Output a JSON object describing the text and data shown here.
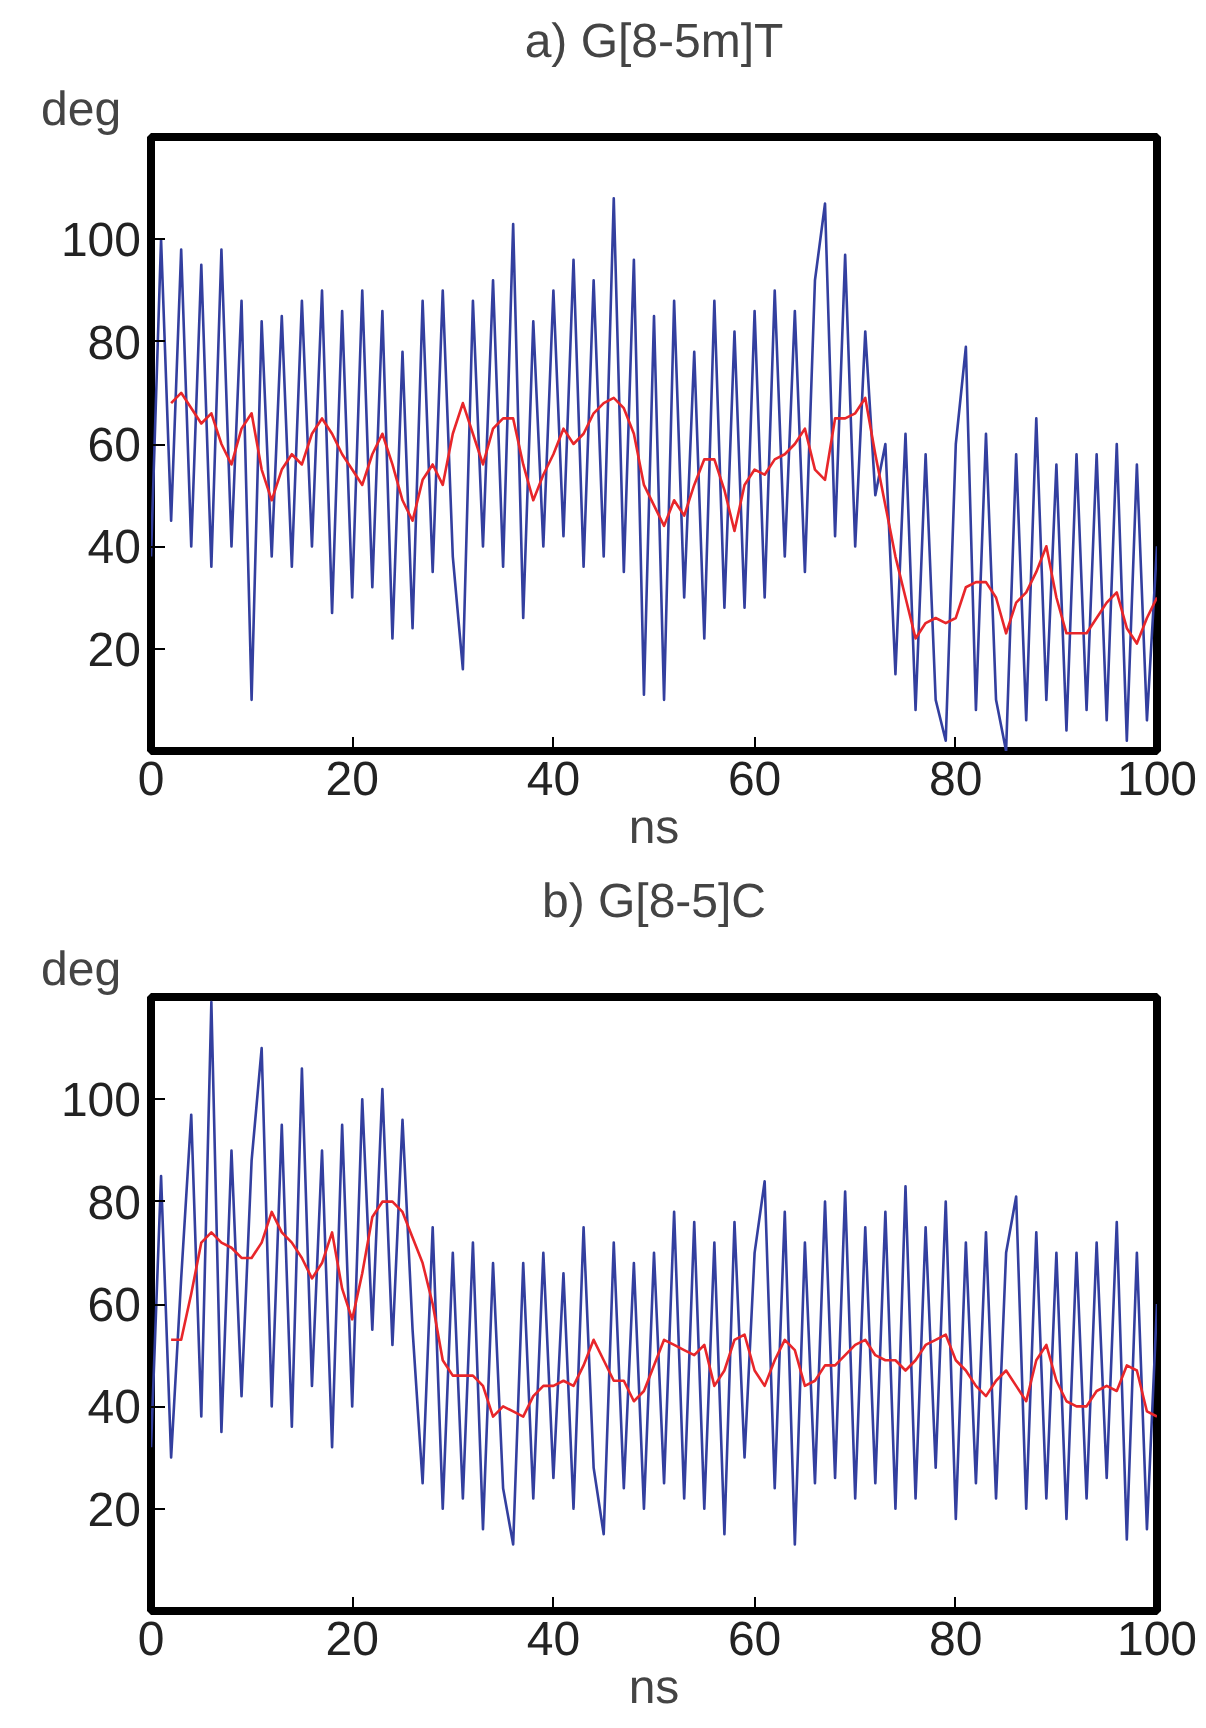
{
  "chart_data": [
    {
      "type": "line",
      "title": "a) G[8-5m]T",
      "xlabel": "ns",
      "ylabel": "deg",
      "xlim": [
        0,
        100
      ],
      "ylim": [
        0,
        120
      ],
      "xticks": [
        0,
        20,
        40,
        60,
        80,
        100
      ],
      "yticks": [
        20,
        40,
        60,
        80,
        100
      ],
      "series": [
        {
          "color": "#333f9f",
          "x": [
            0,
            1,
            2,
            3,
            4,
            5,
            6,
            7,
            8,
            9,
            10,
            11,
            12,
            13,
            14,
            15,
            16,
            17,
            18,
            19,
            20,
            21,
            22,
            23,
            24,
            25,
            26,
            27,
            28,
            29,
            30,
            31,
            32,
            33,
            34,
            35,
            36,
            37,
            38,
            39,
            40,
            41,
            42,
            43,
            44,
            45,
            46,
            47,
            48,
            49,
            50,
            51,
            52,
            53,
            54,
            55,
            56,
            57,
            58,
            59,
            60,
            61,
            62,
            63,
            64,
            65,
            66,
            67,
            68,
            69,
            70,
            71,
            72,
            73,
            74,
            75,
            76,
            77,
            78,
            79,
            80,
            81,
            82,
            83,
            84,
            85,
            86,
            87,
            88,
            89,
            90,
            91,
            92,
            93,
            94,
            95,
            96,
            97,
            98,
            99,
            100
          ],
          "values": [
            38,
            100,
            45,
            98,
            40,
            95,
            36,
            98,
            40,
            88,
            10,
            84,
            38,
            85,
            36,
            88,
            40,
            90,
            27,
            86,
            30,
            90,
            32,
            86,
            22,
            78,
            24,
            88,
            35,
            90,
            38,
            16,
            88,
            40,
            92,
            36,
            103,
            26,
            84,
            40,
            90,
            42,
            96,
            36,
            92,
            38,
            108,
            35,
            96,
            11,
            85,
            10,
            88,
            30,
            78,
            22,
            88,
            28,
            82,
            28,
            86,
            30,
            90,
            38,
            86,
            35,
            92,
            107,
            42,
            97,
            40,
            82,
            50,
            60,
            15,
            62,
            8,
            58,
            10,
            2,
            60,
            79,
            8,
            62,
            10,
            0,
            58,
            6,
            65,
            10,
            56,
            4,
            58,
            8,
            58,
            6,
            60,
            2,
            56,
            6,
            40
          ]
        },
        {
          "color": "#e8262a",
          "x": [
            2,
            3,
            5,
            6,
            7,
            8,
            9,
            10,
            11,
            12,
            13,
            14,
            15,
            16,
            17,
            18,
            19,
            20,
            21,
            22,
            23,
            24,
            25,
            26,
            27,
            28,
            29,
            30,
            31,
            32,
            33,
            34,
            35,
            36,
            37,
            38,
            39,
            40,
            41,
            42,
            43,
            44,
            45,
            46,
            47,
            48,
            49,
            50,
            51,
            52,
            53,
            54,
            55,
            56,
            57,
            58,
            59,
            60,
            61,
            62,
            63,
            64,
            65,
            66,
            67,
            68,
            69,
            70,
            71,
            72,
            73,
            74,
            75,
            76,
            77,
            78,
            79,
            80,
            81,
            82,
            83,
            84,
            85,
            86,
            87,
            88,
            89,
            90,
            91,
            92,
            93,
            94,
            95,
            96,
            97,
            98,
            99,
            100
          ],
          "values": [
            68,
            70,
            64,
            66,
            60,
            56,
            63,
            66,
            55,
            49,
            55,
            58,
            56,
            62,
            65,
            62,
            58,
            55,
            52,
            58,
            62,
            56,
            49,
            45,
            53,
            56,
            52,
            62,
            68,
            62,
            56,
            63,
            65,
            65,
            56,
            49,
            54,
            58,
            63,
            60,
            62,
            66,
            68,
            69,
            67,
            62,
            52,
            48,
            44,
            49,
            46,
            52,
            57,
            57,
            51,
            43,
            52,
            55,
            54,
            57,
            58,
            60,
            63,
            55,
            53,
            65,
            65,
            66,
            69,
            58,
            48,
            38,
            30,
            22,
            25,
            26,
            25,
            26,
            32,
            33,
            33,
            30,
            23,
            29,
            31,
            35,
            40,
            30,
            23,
            23,
            23,
            26,
            29,
            31,
            24,
            21,
            26,
            30
          ]
        }
      ]
    },
    {
      "type": "line",
      "title": "b) G[8-5]C",
      "xlabel": "ns",
      "ylabel": "deg",
      "xlim": [
        0,
        100
      ],
      "ylim": [
        0,
        120
      ],
      "xticks": [
        0,
        20,
        40,
        60,
        80,
        100
      ],
      "yticks": [
        20,
        40,
        60,
        80,
        100
      ],
      "series": [
        {
          "color": "#333f9f",
          "x": [
            0,
            1,
            2,
            3,
            4,
            5,
            6,
            7,
            8,
            9,
            10,
            11,
            12,
            13,
            14,
            15,
            16,
            17,
            18,
            19,
            20,
            21,
            22,
            23,
            24,
            25,
            26,
            27,
            28,
            29,
            30,
            31,
            32,
            33,
            34,
            35,
            36,
            37,
            38,
            39,
            40,
            41,
            42,
            43,
            44,
            45,
            46,
            47,
            48,
            49,
            50,
            51,
            52,
            53,
            54,
            55,
            56,
            57,
            58,
            59,
            60,
            61,
            62,
            63,
            64,
            65,
            66,
            67,
            68,
            69,
            70,
            71,
            72,
            73,
            74,
            75,
            76,
            77,
            78,
            79,
            80,
            81,
            82,
            83,
            84,
            85,
            86,
            87,
            88,
            89,
            90,
            91,
            92,
            93,
            94,
            95,
            96,
            97,
            98,
            99,
            100
          ],
          "values": [
            32,
            85,
            30,
            65,
            97,
            38,
            119,
            35,
            90,
            42,
            88,
            110,
            40,
            95,
            36,
            106,
            44,
            90,
            32,
            95,
            40,
            100,
            55,
            102,
            52,
            96,
            55,
            25,
            75,
            20,
            70,
            22,
            72,
            16,
            68,
            24,
            13,
            68,
            22,
            70,
            26,
            66,
            20,
            75,
            28,
            15,
            72,
            24,
            68,
            20,
            70,
            25,
            78,
            22,
            76,
            20,
            72,
            15,
            76,
            30,
            70,
            84,
            24,
            78,
            13,
            72,
            25,
            80,
            26,
            82,
            22,
            75,
            25,
            78,
            20,
            83,
            22,
            75,
            28,
            80,
            18,
            72,
            25,
            74,
            22,
            70,
            81,
            20,
            74,
            22,
            70,
            18,
            70,
            22,
            72,
            26,
            76,
            14,
            70,
            16,
            60
          ]
        },
        {
          "color": "#e8262a",
          "x": [
            2,
            3,
            4,
            5,
            6,
            7,
            8,
            9,
            10,
            11,
            12,
            13,
            14,
            15,
            16,
            17,
            18,
            19,
            20,
            21,
            22,
            23,
            24,
            25,
            26,
            27,
            28,
            29,
            30,
            31,
            32,
            33,
            34,
            35,
            36,
            37,
            38,
            39,
            40,
            41,
            42,
            43,
            44,
            45,
            46,
            47,
            48,
            49,
            50,
            51,
            52,
            53,
            54,
            55,
            56,
            57,
            58,
            59,
            60,
            61,
            62,
            63,
            64,
            65,
            66,
            67,
            68,
            69,
            70,
            71,
            72,
            73,
            74,
            75,
            76,
            77,
            78,
            79,
            80,
            81,
            82,
            83,
            84,
            85,
            86,
            87,
            88,
            89,
            90,
            91,
            92,
            93,
            94,
            95,
            96,
            97,
            98,
            99,
            100
          ],
          "values": [
            53,
            53,
            62,
            72,
            74,
            72,
            71,
            69,
            69,
            72,
            78,
            74,
            72,
            69,
            65,
            68,
            74,
            63,
            57,
            66,
            77,
            80,
            80,
            78,
            73,
            68,
            60,
            49,
            46,
            46,
            46,
            44,
            38,
            40,
            39,
            38,
            42,
            44,
            44,
            45,
            44,
            48,
            53,
            49,
            45,
            45,
            41,
            43,
            48,
            53,
            52,
            51,
            50,
            52,
            44,
            47,
            53,
            54,
            47,
            44,
            49,
            53,
            51,
            44,
            45,
            48,
            48,
            50,
            52,
            53,
            50,
            49,
            49,
            47,
            49,
            52,
            53,
            54,
            49,
            47,
            44,
            42,
            45,
            47,
            44,
            41,
            49,
            52,
            45,
            41,
            40,
            40,
            43,
            44,
            43,
            48,
            47,
            39,
            38
          ]
        }
      ]
    }
  ]
}
